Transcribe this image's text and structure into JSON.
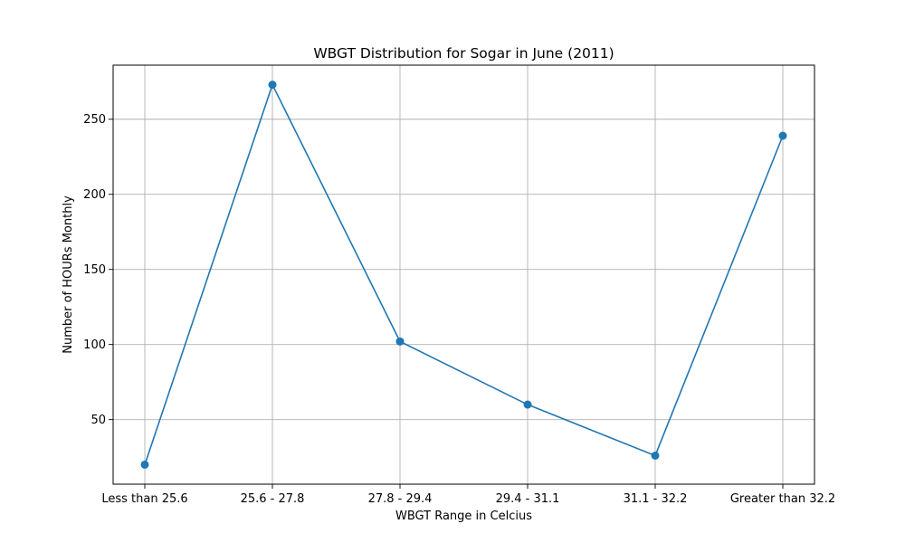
{
  "chart_data": {
    "type": "line",
    "title": "WBGT Distribution for Sogar in June (2011)",
    "xlabel": "WBGT Range in Celcius",
    "ylabel": "Number of HOURs Monthly",
    "categories": [
      "Less than 25.6",
      "25.6 - 27.8",
      "27.8 - 29.4",
      "29.4 - 31.1",
      "31.1 - 32.2",
      "Greater than 32.2"
    ],
    "series": [
      {
        "values": [
          20,
          273,
          102,
          60,
          26,
          239
        ],
        "color": "#1f77b4",
        "marker": "circle"
      }
    ],
    "yticks": [
      50,
      100,
      150,
      200,
      250
    ],
    "ylim": [
      7,
      286
    ],
    "grid": true,
    "legend": "none"
  }
}
